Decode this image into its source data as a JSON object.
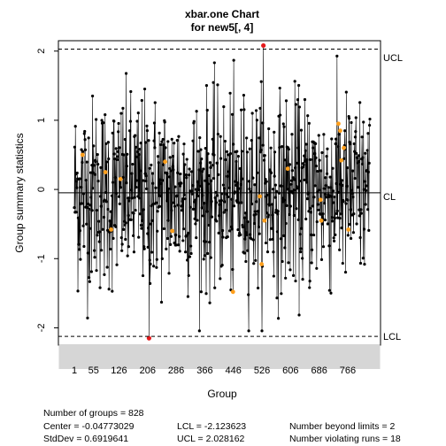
{
  "chart_data": {
    "type": "line",
    "title_line1": "xbar.one Chart",
    "title_line2": "for new5[, 4]",
    "xlabel": "Group",
    "ylabel": "Group summary statistics",
    "x_ticks": [
      "1",
      "55",
      "126",
      "206",
      "286",
      "366",
      "446",
      "526",
      "606",
      "686",
      "766"
    ],
    "y_ticks": [
      "-2",
      "-1",
      "0",
      "1",
      "2"
    ],
    "xlim": [
      1,
      828
    ],
    "ylim": [
      -2.25,
      2.15
    ],
    "n_groups": 828,
    "center": -0.04773029,
    "ucl": 2.028162,
    "lcl": -2.123623,
    "line_labels": {
      "ucl": "UCL",
      "cl": "CL",
      "lcl": "LCL"
    },
    "beyond_limits": [
      {
        "group": 530,
        "value": 2.08
      },
      {
        "group": 210,
        "value": -2.15
      }
    ],
    "violating_runs": [
      {
        "group": 24,
        "value": 0.5
      },
      {
        "group": 88,
        "value": 0.25
      },
      {
        "group": 130,
        "value": 0.15
      },
      {
        "group": 104,
        "value": -0.58
      },
      {
        "group": 255,
        "value": 0.4
      },
      {
        "group": 275,
        "value": -0.6
      },
      {
        "group": 445,
        "value": -1.48
      },
      {
        "group": 520,
        "value": -0.1
      },
      {
        "group": 525,
        "value": -1.08
      },
      {
        "group": 533,
        "value": -0.45
      },
      {
        "group": 690,
        "value": -0.15
      },
      {
        "group": 692,
        "value": -0.45
      },
      {
        "group": 740,
        "value": 0.95
      },
      {
        "group": 745,
        "value": 0.85
      },
      {
        "group": 748,
        "value": 0.42
      },
      {
        "group": 768,
        "value": -0.58
      },
      {
        "group": 755,
        "value": 0.6
      },
      {
        "group": 598,
        "value": 0.3
      }
    ],
    "colors": {
      "points": "#000000",
      "beyond": "#e41a1c",
      "violating": "#ff9f1c"
    }
  },
  "stats": {
    "groups_label": "Number of groups = 828",
    "center_label": "Center = -0.04773029",
    "stddev_label": "StdDev = 0.6919641",
    "lcl_label": "LCL = -2.123623",
    "ucl_label": "UCL = 2.028162",
    "beyond_label": "Number beyond limits = 2",
    "runs_label": "Number violating runs = 18"
  }
}
